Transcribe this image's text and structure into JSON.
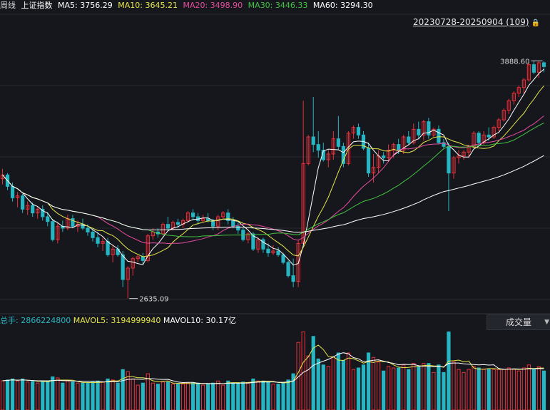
{
  "header": {
    "period": "周线",
    "index_name": "上证指数",
    "ma5_label": "MA5:",
    "ma5_value": "3756.29",
    "ma10_label": "MA10:",
    "ma10_value": "3645.21",
    "ma20_label": "MA20:",
    "ma20_value": "3498.90",
    "ma30_label": "MA30:",
    "ma30_value": "3446.33",
    "ma60_label": "MA60:",
    "ma60_value": "3294.30"
  },
  "range_label": "20230728-20250904 (109)",
  "lock_icon": "lock-icon",
  "colors": {
    "background": "#16171c",
    "up": "#e8313c",
    "down": "#26b5c2",
    "ma5": "#ffffff",
    "ma10": "#e6e64c",
    "ma20": "#e64c9e",
    "ma30": "#42c242",
    "ma60": "#ffffff"
  },
  "volume_header": {
    "total_label": "总手:",
    "total_value": "2866224800",
    "mavol5_label": "MAVOL5:",
    "mavol5_value": "3194999940",
    "mavol10_label": "MAVOL10:",
    "mavol10_value": "30.17亿"
  },
  "volume_dropdown": {
    "selected": "成交量",
    "arrow_icon": "caret-down-icon"
  },
  "chart_data": {
    "type": "candlestick",
    "bars": 109,
    "ylim": [
      2560,
      4060
    ],
    "grid": true,
    "annotations": {
      "high_label": "3888.60",
      "low_label": "2635.09"
    },
    "ohlc": [
      [
        3270,
        3322,
        3240,
        3290
      ],
      [
        3290,
        3300,
        3210,
        3230
      ],
      [
        3230,
        3250,
        3150,
        3170
      ],
      [
        3170,
        3200,
        3120,
        3180
      ],
      [
        3180,
        3190,
        3090,
        3110
      ],
      [
        3110,
        3150,
        3080,
        3130
      ],
      [
        3130,
        3145,
        3070,
        3090
      ],
      [
        3090,
        3120,
        3060,
        3110
      ],
      [
        3110,
        3130,
        3050,
        3070
      ],
      [
        3070,
        3095,
        3020,
        3045
      ],
      [
        3045,
        3060,
        2940,
        2950
      ],
      [
        2950,
        3040,
        2930,
        3020
      ],
      [
        3020,
        3050,
        2990,
        3010
      ],
      [
        3010,
        3080,
        3000,
        3060
      ],
      [
        3060,
        3080,
        3010,
        3020
      ],
      [
        3020,
        3050,
        2990,
        3030
      ],
      [
        3030,
        3060,
        3000,
        3010
      ],
      [
        3010,
        3030,
        2970,
        2990
      ],
      [
        2990,
        3010,
        2940,
        2960
      ],
      [
        2960,
        2990,
        2910,
        2930
      ],
      [
        2930,
        2960,
        2890,
        2940
      ],
      [
        2940,
        2960,
        2860,
        2870
      ],
      [
        2870,
        2920,
        2830,
        2900
      ],
      [
        2900,
        2920,
        2860,
        2870
      ],
      [
        2870,
        2890,
        2700,
        2740
      ],
      [
        2740,
        2810,
        2640,
        2800
      ],
      [
        2800,
        2860,
        2760,
        2850
      ],
      [
        2850,
        2870,
        2830,
        2860
      ],
      [
        2860,
        2880,
        2820,
        2840
      ],
      [
        2840,
        2980,
        2830,
        2970
      ],
      [
        2970,
        3010,
        2950,
        2990
      ],
      [
        2990,
        3010,
        2960,
        2980
      ],
      [
        2980,
        3040,
        2970,
        3030
      ],
      [
        3030,
        3070,
        3000,
        3010
      ],
      [
        3010,
        3050,
        3000,
        3040
      ],
      [
        3040,
        3060,
        3010,
        3030
      ],
      [
        3030,
        3060,
        3010,
        3050
      ],
      [
        3050,
        3100,
        3040,
        3090
      ],
      [
        3090,
        3110,
        3050,
        3070
      ],
      [
        3070,
        3090,
        3030,
        3050
      ],
      [
        3050,
        3080,
        3040,
        3060
      ],
      [
        3060,
        3090,
        3040,
        3050
      ],
      [
        3050,
        3060,
        3000,
        3020
      ],
      [
        3020,
        3080,
        3000,
        3070
      ],
      [
        3070,
        3100,
        3060,
        3090
      ],
      [
        3090,
        3110,
        3030,
        3050
      ],
      [
        3050,
        3070,
        3010,
        3020
      ],
      [
        3020,
        3040,
        2980,
        3000
      ],
      [
        3000,
        3010,
        2940,
        2950
      ],
      [
        2950,
        2990,
        2930,
        2980
      ],
      [
        2980,
        2990,
        2890,
        2900
      ],
      [
        2900,
        2960,
        2880,
        2950
      ],
      [
        2950,
        2960,
        2880,
        2900
      ],
      [
        2900,
        2930,
        2860,
        2880
      ],
      [
        2880,
        2920,
        2870,
        2890
      ],
      [
        2890,
        2910,
        2860,
        2870
      ],
      [
        2870,
        2880,
        2820,
        2830
      ],
      [
        2830,
        2840,
        2750,
        2760
      ],
      [
        2760,
        2850,
        2700,
        2730
      ],
      [
        2730,
        2950,
        2700,
        2930
      ],
      [
        2930,
        3680,
        2930,
        3350
      ],
      [
        3350,
        3500,
        3340,
        3490
      ],
      [
        3490,
        3700,
        3410,
        3450
      ],
      [
        3450,
        3520,
        3380,
        3420
      ],
      [
        3420,
        3460,
        3360,
        3370
      ],
      [
        3370,
        3420,
        3330,
        3400
      ],
      [
        3400,
        3520,
        3370,
        3480
      ],
      [
        3480,
        3600,
        3420,
        3440
      ],
      [
        3440,
        3460,
        3330,
        3350
      ],
      [
        3350,
        3520,
        3340,
        3510
      ],
      [
        3510,
        3550,
        3480,
        3540
      ],
      [
        3540,
        3560,
        3480,
        3500
      ],
      [
        3500,
        3520,
        3420,
        3430
      ],
      [
        3430,
        3460,
        3280,
        3300
      ],
      [
        3300,
        3400,
        3250,
        3330
      ],
      [
        3330,
        3420,
        3300,
        3390
      ],
      [
        3390,
        3410,
        3350,
        3380
      ],
      [
        3380,
        3450,
        3360,
        3420
      ],
      [
        3420,
        3460,
        3380,
        3450
      ],
      [
        3450,
        3480,
        3400,
        3420
      ],
      [
        3420,
        3500,
        3400,
        3490
      ],
      [
        3490,
        3520,
        3450,
        3460
      ],
      [
        3460,
        3560,
        3450,
        3530
      ],
      [
        3530,
        3570,
        3480,
        3500
      ],
      [
        3500,
        3580,
        3470,
        3570
      ],
      [
        3570,
        3590,
        3480,
        3500
      ],
      [
        3500,
        3540,
        3490,
        3530
      ],
      [
        3530,
        3550,
        3450,
        3460
      ],
      [
        3460,
        3480,
        3430,
        3440
      ],
      [
        3440,
        3460,
        3100,
        3300
      ],
      [
        3300,
        3390,
        3270,
        3380
      ],
      [
        3380,
        3420,
        3350,
        3390
      ],
      [
        3390,
        3420,
        3370,
        3410
      ],
      [
        3410,
        3450,
        3380,
        3440
      ],
      [
        3440,
        3520,
        3430,
        3510
      ],
      [
        3510,
        3520,
        3440,
        3460
      ],
      [
        3460,
        3520,
        3450,
        3500
      ],
      [
        3500,
        3540,
        3470,
        3490
      ],
      [
        3490,
        3550,
        3480,
        3540
      ],
      [
        3540,
        3590,
        3520,
        3580
      ],
      [
        3580,
        3640,
        3570,
        3630
      ],
      [
        3630,
        3690,
        3610,
        3680
      ],
      [
        3680,
        3730,
        3660,
        3720
      ],
      [
        3720,
        3760,
        3700,
        3750
      ],
      [
        3750,
        3800,
        3720,
        3790
      ],
      [
        3790,
        3880,
        3780,
        3870
      ],
      [
        3870,
        3889,
        3820,
        3830
      ],
      [
        3830,
        3889,
        3800,
        3880
      ],
      [
        3880,
        3890,
        3830,
        3860
      ]
    ],
    "volume_ylim": [
      0,
      7000000000
    ]
  }
}
